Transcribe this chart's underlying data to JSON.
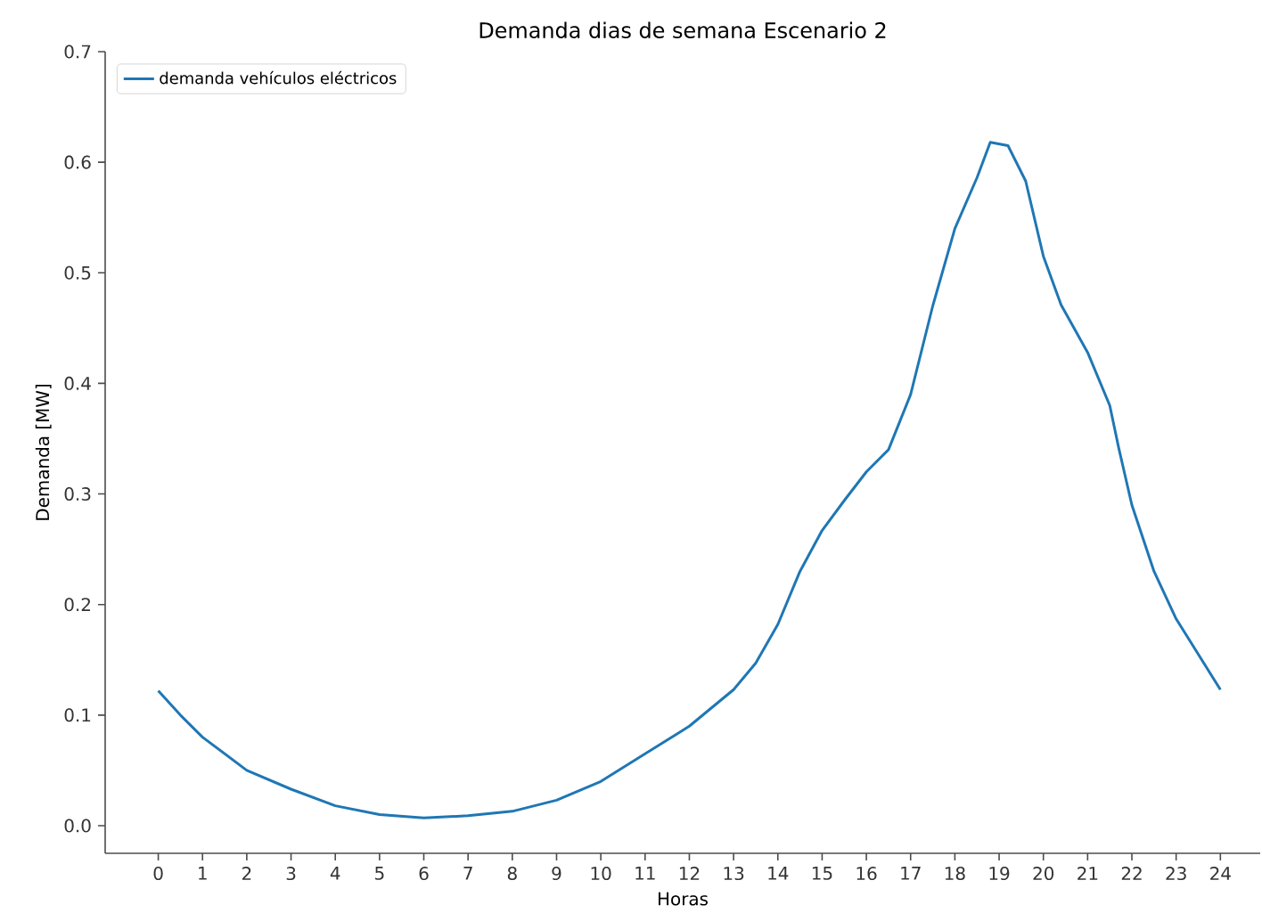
{
  "chart_data": {
    "type": "line",
    "title": "Demanda dias de semana Escenario 2",
    "xlabel": "Horas",
    "ylabel": "Demanda [MW]",
    "x": [
      0,
      0.5,
      1,
      2,
      3,
      4,
      5,
      6,
      7,
      8,
      9,
      10,
      11,
      12,
      13,
      13.5,
      14,
      14.5,
      15,
      15.5,
      16,
      16.5,
      17,
      17.5,
      18,
      18.5,
      18.8,
      19.2,
      19.6,
      20,
      20.4,
      21,
      21.5,
      21.7,
      22,
      22.5,
      23,
      23.5,
      24
    ],
    "series": [
      {
        "name": "demanda vehículos eléctricos",
        "color": "#1f77b4",
        "values": [
          0.122,
          0.1,
          0.08,
          0.05,
          0.033,
          0.018,
          0.01,
          0.007,
          0.009,
          0.013,
          0.023,
          0.04,
          0.065,
          0.09,
          0.123,
          0.147,
          0.182,
          0.23,
          0.267,
          0.294,
          0.32,
          0.34,
          0.39,
          0.47,
          0.54,
          0.586,
          0.618,
          0.615,
          0.583,
          0.515,
          0.471,
          0.428,
          0.38,
          0.342,
          0.29,
          0.23,
          0.187,
          0.155,
          0.123
        ]
      }
    ],
    "xlim": [
      -1.2,
      24.9
    ],
    "ylim": [
      -0.025,
      0.7
    ],
    "xticks": [
      0,
      1,
      2,
      3,
      4,
      5,
      6,
      7,
      8,
      9,
      10,
      11,
      12,
      13,
      14,
      15,
      16,
      17,
      18,
      19,
      20,
      21,
      22,
      23,
      24
    ],
    "yticks": [
      {
        "value": 0,
        "label": "0.0"
      },
      {
        "value": 0.1,
        "label": "0.1"
      },
      {
        "value": 0.2,
        "label": "0.2"
      },
      {
        "value": 0.3,
        "label": "0.3"
      },
      {
        "value": 0.4,
        "label": "0.4"
      },
      {
        "value": 0.5,
        "label": "0.5"
      },
      {
        "value": 0.6,
        "label": "0.6"
      },
      {
        "value": 0.7,
        "label": "0.7"
      }
    ],
    "grid": false,
    "legend": "top left"
  }
}
